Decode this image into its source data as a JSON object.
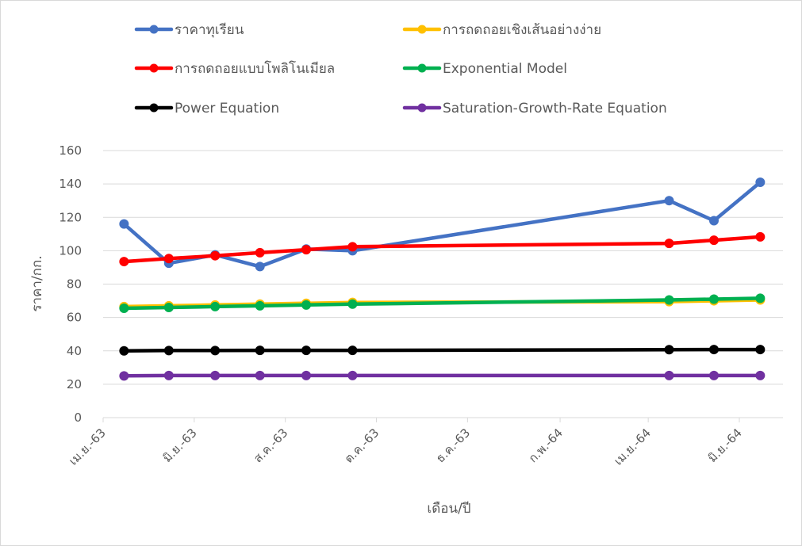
{
  "chart_data": {
    "type": "line",
    "title": "",
    "xlabel": "เดือน/ปี",
    "ylabel": "ราคา/กก.",
    "ylim": [
      0,
      160
    ],
    "yticks": [
      0,
      20,
      40,
      60,
      80,
      100,
      120,
      140,
      160
    ],
    "grid": true,
    "legend_position": "top",
    "x_tick_labels": [
      "เม.ย.-63",
      "มิ.ย.-63",
      "ส.ค.-63",
      "ต.ค.-63",
      "ธ.ค.-63",
      "ก.พ.-64",
      "เม.ย.-64",
      "มิ.ย.-64"
    ],
    "x_tick_dates": [
      "2020-04-01",
      "2020-06-01",
      "2020-08-01",
      "2020-10-01",
      "2020-12-01",
      "2021-02-01",
      "2021-04-01",
      "2021-06-01"
    ],
    "x": [
      "2020-04-15",
      "2020-05-15",
      "2020-06-15",
      "2020-07-15",
      "2020-08-15",
      "2020-09-15",
      "2021-04-15",
      "2021-05-15",
      "2021-06-15"
    ],
    "series": [
      {
        "name": "ราคาทุเรียน",
        "color": "#4472c4",
        "values": [
          116,
          92.5,
          97.5,
          90.5,
          101,
          100,
          130,
          118,
          141
        ]
      },
      {
        "name": "การถดถอยเชิงเส้นอย่างง่าย",
        "color": "#ffc000",
        "values": [
          66.5,
          67,
          67.5,
          68,
          68.5,
          69,
          69.5,
          70,
          70.5
        ]
      },
      {
        "name": "การถดถอยแบบโพลิโนเมียล",
        "color": "#ff0000",
        "values": [
          93.5,
          95.3,
          97,
          98.8,
          100.6,
          102.4,
          104.4,
          106.3,
          108.3
        ]
      },
      {
        "name": "Exponential Model",
        "color": "#00b050",
        "values": [
          65.5,
          66,
          66.5,
          67,
          67.5,
          68,
          70.5,
          71,
          71.5
        ]
      },
      {
        "name": "Power Equation",
        "color": "#000000",
        "values": [
          40,
          40.2,
          40.2,
          40.3,
          40.3,
          40.3,
          40.7,
          40.8,
          40.8
        ]
      },
      {
        "name": "Saturation-Growth-Rate Equation",
        "color": "#7030a0",
        "values": [
          25,
          25.2,
          25.2,
          25.2,
          25.2,
          25.2,
          25.2,
          25.2,
          25.2
        ]
      }
    ]
  }
}
